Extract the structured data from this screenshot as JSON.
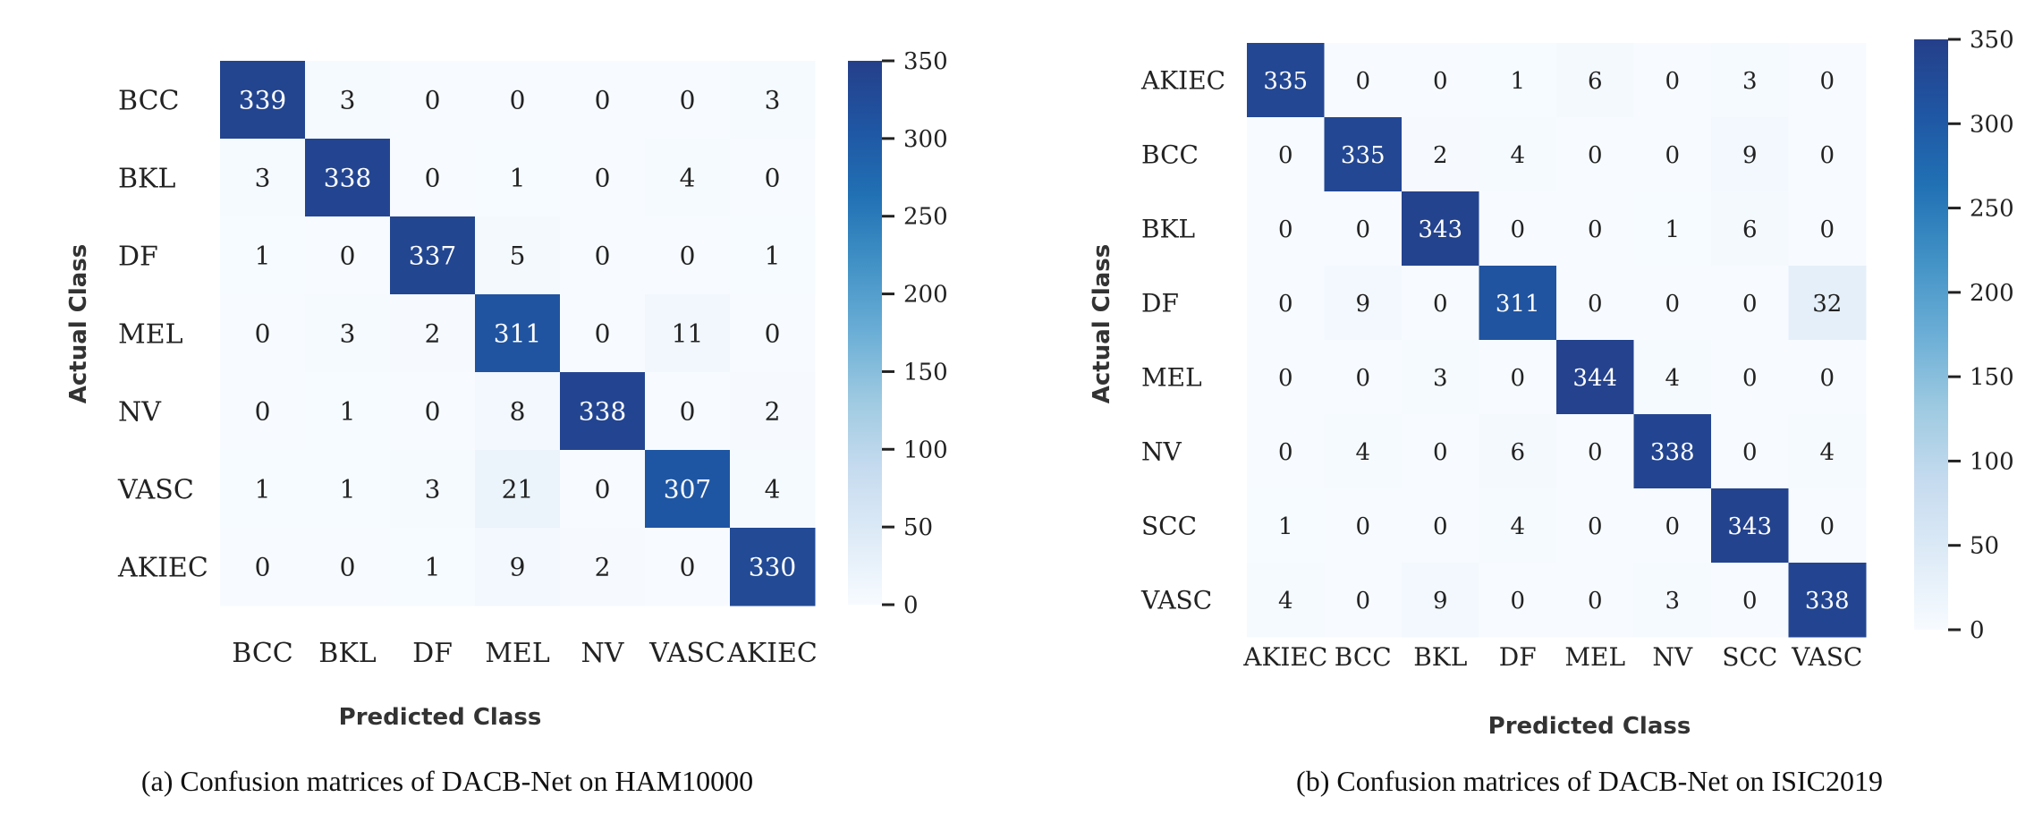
{
  "colors": {
    "scale": [
      "#f7fbff",
      "#deebf7",
      "#c6dbef",
      "#9ecae1",
      "#6baed6",
      "#4292c6",
      "#2171b5",
      "#1f56a3",
      "#253f8a"
    ],
    "text_dark": "#222222",
    "text_light": "#ffffff"
  },
  "chart_data": [
    {
      "type": "heatmap",
      "caption": "(a) Confusion matrices of DACB-Net on HAM10000",
      "xlabel": "Predicted Class",
      "ylabel": "Actual Class",
      "x_categories": [
        "BCC",
        "BKL",
        "DF",
        "MEL",
        "NV",
        "VASC",
        "AKIEC"
      ],
      "y_categories": [
        "BCC",
        "BKL",
        "DF",
        "MEL",
        "NV",
        "VASC",
        "AKIEC"
      ],
      "values": [
        [
          339,
          3,
          0,
          0,
          0,
          0,
          3
        ],
        [
          3,
          338,
          0,
          1,
          0,
          4,
          0
        ],
        [
          1,
          0,
          337,
          5,
          0,
          0,
          1
        ],
        [
          0,
          3,
          2,
          311,
          0,
          11,
          0
        ],
        [
          0,
          1,
          0,
          8,
          338,
          0,
          2
        ],
        [
          1,
          1,
          3,
          21,
          0,
          307,
          4
        ],
        [
          0,
          0,
          1,
          9,
          2,
          0,
          330
        ]
      ],
      "colorbar": {
        "range": [
          0,
          350
        ],
        "ticks": [
          "0",
          "50",
          "100",
          "150",
          "200",
          "250",
          "300",
          "350"
        ]
      }
    },
    {
      "type": "heatmap",
      "caption": "(b) Confusion matrices of DACB-Net on ISIC2019",
      "xlabel": "Predicted Class",
      "ylabel": "Actual Class",
      "x_categories": [
        "AKIEC",
        "BCC",
        "BKL",
        "DF",
        "MEL",
        "NV",
        "SCC",
        "VASC"
      ],
      "y_categories": [
        "AKIEC",
        "BCC",
        "BKL",
        "DF",
        "MEL",
        "NV",
        "SCC",
        "VASC"
      ],
      "values": [
        [
          335,
          0,
          0,
          1,
          6,
          0,
          3,
          0
        ],
        [
          0,
          335,
          2,
          4,
          0,
          0,
          9,
          0
        ],
        [
          0,
          0,
          343,
          0,
          0,
          1,
          6,
          0
        ],
        [
          0,
          9,
          0,
          311,
          0,
          0,
          0,
          32
        ],
        [
          0,
          0,
          3,
          0,
          344,
          4,
          0,
          0
        ],
        [
          0,
          4,
          0,
          6,
          0,
          338,
          0,
          4
        ],
        [
          1,
          0,
          0,
          4,
          0,
          0,
          343,
          0
        ],
        [
          4,
          0,
          9,
          0,
          0,
          3,
          0,
          338
        ]
      ],
      "colorbar": {
        "range": [
          0,
          350
        ],
        "ticks": [
          "0",
          "50",
          "100",
          "150",
          "200",
          "250",
          "300",
          "350"
        ]
      }
    }
  ]
}
